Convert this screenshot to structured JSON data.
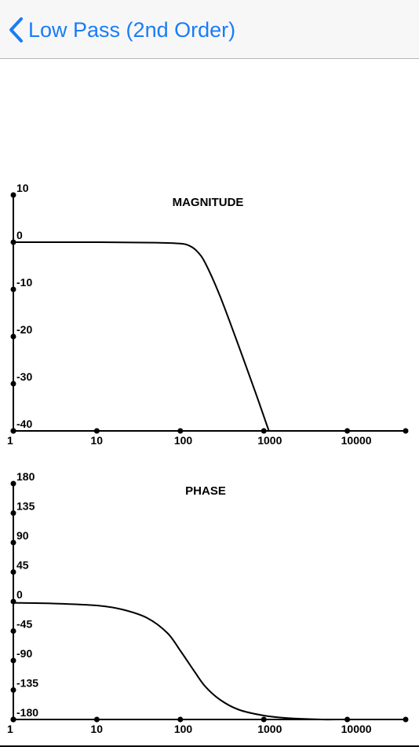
{
  "nav": {
    "back_label": "Low Pass (2nd Order)",
    "back_icon": "chevron-left-icon",
    "accent_color": "#1a7cf6"
  },
  "chart_data": [
    {
      "type": "line",
      "title": "MAGNITUDE",
      "xscale": "log",
      "xlim": [
        1,
        50000
      ],
      "ylim": [
        -40,
        10
      ],
      "x_ticks": [
        1,
        10,
        100,
        1000,
        10000
      ],
      "x_tick_labels": [
        "1",
        "10",
        "100",
        "1000",
        "10000"
      ],
      "y_ticks": [
        10,
        0,
        -10,
        -20,
        -30,
        -40
      ],
      "y_tick_labels": [
        "10",
        "0",
        "-10",
        "-20",
        "-30",
        "-40"
      ],
      "series": [
        {
          "x": [
            1,
            10,
            50,
            100,
            130,
            160,
            200,
            300,
            500,
            800,
            1150
          ],
          "values": [
            0,
            0,
            -0.1,
            -0.3,
            -0.8,
            -2.0,
            -4.5,
            -11.5,
            -22,
            -32,
            -40
          ]
        }
      ]
    },
    {
      "type": "line",
      "title": "PHASE",
      "xscale": "log",
      "xlim": [
        1,
        50000
      ],
      "ylim": [
        -180,
        180
      ],
      "x_ticks": [
        1,
        10,
        100,
        1000,
        10000
      ],
      "x_tick_labels": [
        "1",
        "10",
        "100",
        "1000",
        "10000"
      ],
      "y_ticks": [
        180,
        135,
        90,
        45,
        0,
        -45,
        -90,
        -135,
        -180
      ],
      "y_tick_labels": [
        "180",
        "135",
        "90",
        "45",
        "0",
        "-45",
        "-90",
        "-135",
        "-180"
      ],
      "series": [
        {
          "x": [
            1,
            3,
            10,
            20,
            40,
            70,
            100,
            150,
            200,
            300,
            500,
            1000,
            2000,
            5000,
            8000
          ],
          "values": [
            -2,
            -3,
            -6,
            -12,
            -25,
            -48,
            -75,
            -108,
            -130,
            -150,
            -165,
            -174,
            -178,
            -180,
            -180
          ]
        }
      ]
    }
  ]
}
